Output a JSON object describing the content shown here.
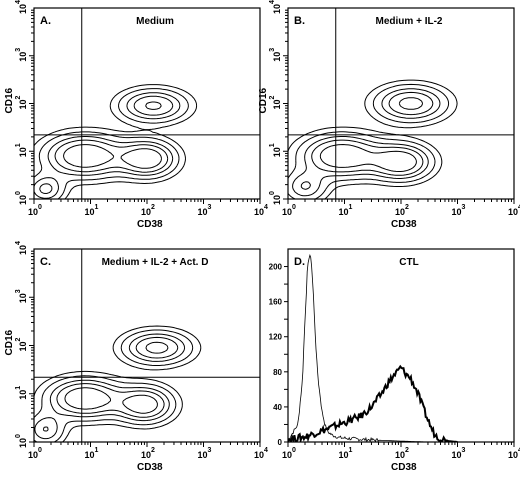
{
  "figure": {
    "background": "#ffffff",
    "ink": "#000000"
  },
  "chart_data": [
    {
      "type": "contour",
      "panel_label": "A.",
      "title": "Medium",
      "xlabel": "CD38",
      "ylabel": "CD16",
      "x_scale": "log",
      "y_scale": "log",
      "xlim": [
        1,
        10000
      ],
      "ylim": [
        1,
        10000
      ],
      "x_ticks": [
        "10",
        "10",
        "10",
        "10",
        "10"
      ],
      "x_tick_exponents": [
        "0",
        "1",
        "2",
        "3",
        "4"
      ],
      "y_ticks": [
        "10",
        "10",
        "10",
        "10",
        "10"
      ],
      "y_tick_exponents": [
        "0",
        "1",
        "2",
        "3",
        "4"
      ],
      "quadrant_x": 7,
      "quadrant_y": 22,
      "clusters": [
        {
          "x": 8,
          "y": 8,
          "sx": 0.45,
          "sy": 0.28,
          "w": 1.0
        },
        {
          "x": 100,
          "y": 7,
          "sx": 0.32,
          "sy": 0.24,
          "w": 0.95
        },
        {
          "x": 130,
          "y": 90,
          "sx": 0.38,
          "sy": 0.22,
          "w": 0.75
        },
        {
          "x": 1.6,
          "y": 1.6,
          "sx": 0.22,
          "sy": 0.2,
          "w": 0.55
        }
      ],
      "levels": [
        0.1,
        0.2,
        0.35,
        0.5,
        0.7
      ]
    },
    {
      "type": "contour",
      "panel_label": "B.",
      "title": "Medium + IL-2",
      "xlabel": "CD38",
      "ylabel": "CD16",
      "x_scale": "log",
      "y_scale": "log",
      "xlim": [
        1,
        10000
      ],
      "ylim": [
        1,
        10000
      ],
      "x_ticks": [
        "10",
        "10",
        "10",
        "10",
        "10"
      ],
      "x_tick_exponents": [
        "0",
        "1",
        "2",
        "3",
        "4"
      ],
      "y_ticks": [
        "10",
        "10",
        "10",
        "10",
        "10"
      ],
      "y_tick_exponents": [
        "0",
        "1",
        "2",
        "3",
        "4"
      ],
      "quadrant_x": 7,
      "quadrant_y": 22,
      "clusters": [
        {
          "x": 9,
          "y": 8,
          "sx": 0.45,
          "sy": 0.28,
          "w": 1.0
        },
        {
          "x": 100,
          "y": 6,
          "sx": 0.34,
          "sy": 0.24,
          "w": 0.95
        },
        {
          "x": 150,
          "y": 100,
          "sx": 0.4,
          "sy": 0.24,
          "w": 0.8
        },
        {
          "x": 2,
          "y": 1.8,
          "sx": 0.25,
          "sy": 0.22,
          "w": 0.5
        }
      ],
      "levels": [
        0.1,
        0.2,
        0.35,
        0.5,
        0.7
      ]
    },
    {
      "type": "contour",
      "panel_label": "C.",
      "title": "Medium + IL-2 + Act. D",
      "xlabel": "CD38",
      "ylabel": "CD16",
      "x_scale": "log",
      "y_scale": "log",
      "xlim": [
        1,
        10000
      ],
      "ylim": [
        1,
        10000
      ],
      "x_ticks": [
        "10",
        "10",
        "10",
        "10",
        "10"
      ],
      "x_tick_exponents": [
        "0",
        "1",
        "2",
        "3",
        "4"
      ],
      "y_ticks": [
        "10",
        "10",
        "10",
        "10",
        "10"
      ],
      "y_tick_exponents": [
        "0",
        "1",
        "2",
        "3",
        "4"
      ],
      "quadrant_x": 7,
      "quadrant_y": 22,
      "clusters": [
        {
          "x": 8,
          "y": 8,
          "sx": 0.42,
          "sy": 0.26,
          "w": 1.0
        },
        {
          "x": 90,
          "y": 6,
          "sx": 0.32,
          "sy": 0.24,
          "w": 0.9
        },
        {
          "x": 150,
          "y": 90,
          "sx": 0.38,
          "sy": 0.22,
          "w": 0.8
        },
        {
          "x": 1.6,
          "y": 1.8,
          "sx": 0.22,
          "sy": 0.22,
          "w": 0.5
        }
      ],
      "levels": [
        0.1,
        0.2,
        0.35,
        0.5,
        0.7
      ]
    },
    {
      "type": "histogram",
      "panel_label": "D.",
      "title": "CTL",
      "xlabel": "CD38",
      "x_scale": "log",
      "xlim": [
        1,
        10000
      ],
      "ylim": [
        0,
        220
      ],
      "x_ticks": [
        "10",
        "10",
        "10",
        "10",
        "10"
      ],
      "x_tick_exponents": [
        "0",
        "1",
        "2",
        "3",
        "4"
      ],
      "y_ticks": [
        0,
        20,
        40,
        60,
        80,
        100,
        120,
        140,
        160,
        180,
        200
      ],
      "series": [
        {
          "line": "thin",
          "x": [
            1,
            1.5,
            1.8,
            2.0,
            2.2,
            2.4,
            2.6,
            2.8,
            3.0,
            3.2,
            3.5,
            4.0,
            4.5,
            5.0,
            6.0,
            8.0,
            12,
            20,
            40,
            100,
            300
          ],
          "y": [
            2,
            20,
            70,
            140,
            195,
            215,
            205,
            170,
            130,
            95,
            65,
            35,
            20,
            12,
            8,
            5,
            4,
            3,
            2,
            1,
            0
          ]
        },
        {
          "line": "thick",
          "x": [
            1,
            2,
            3,
            5,
            8,
            12,
            20,
            30,
            45,
            60,
            80,
            100,
            120,
            150,
            200,
            250,
            300,
            350,
            400,
            500,
            700,
            1000
          ],
          "y": [
            3,
            6,
            10,
            15,
            20,
            24,
            30,
            40,
            55,
            68,
            78,
            85,
            78,
            72,
            55,
            38,
            25,
            15,
            8,
            4,
            1,
            0
          ]
        }
      ]
    }
  ]
}
